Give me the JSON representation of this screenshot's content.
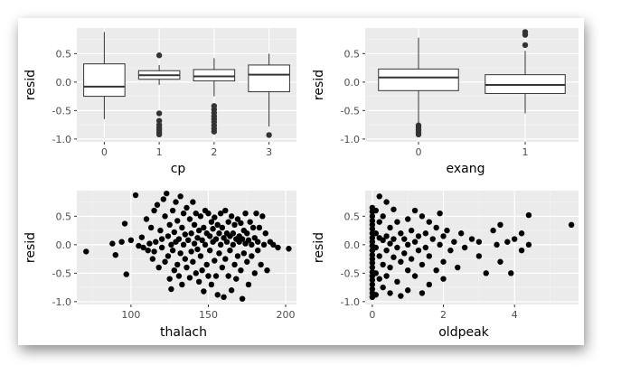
{
  "chart_data": [
    {
      "type": "box",
      "xlabel": "cp",
      "ylabel": "resid",
      "categories": [
        "0",
        "1",
        "2",
        "3"
      ],
      "ylim": [
        -1.05,
        0.95
      ],
      "yticks": [
        -1.0,
        -0.5,
        0.0,
        0.5
      ],
      "ytick_labels": [
        "-1.0",
        "-0.5",
        "0.0",
        "0.5"
      ],
      "grid": true,
      "boxes": [
        {
          "q1": -0.25,
          "median": -0.08,
          "q3": 0.32,
          "whisker_low": -0.65,
          "whisker_high": 0.88,
          "outliers": []
        },
        {
          "q1": 0.05,
          "median": 0.12,
          "q3": 0.2,
          "whisker_low": -0.05,
          "whisker_high": 0.3,
          "outliers": [
            0.47,
            -0.55,
            -0.68,
            -0.75,
            -0.8,
            -0.84,
            -0.88,
            -0.92
          ]
        },
        {
          "q1": 0.02,
          "median": 0.1,
          "q3": 0.22,
          "whisker_low": -0.25,
          "whisker_high": 0.42,
          "outliers": [
            -0.42,
            -0.48,
            -0.54,
            -0.6,
            -0.65,
            -0.7,
            -0.76,
            -0.82,
            -0.87
          ]
        },
        {
          "q1": -0.17,
          "median": 0.13,
          "q3": 0.3,
          "whisker_low": -0.78,
          "whisker_high": 0.5,
          "outliers": [
            -0.93
          ]
        }
      ]
    },
    {
      "type": "box",
      "xlabel": "exang",
      "ylabel": "resid",
      "categories": [
        "0",
        "1"
      ],
      "ylim": [
        -1.05,
        0.95
      ],
      "yticks": [
        -1.0,
        -0.5,
        0.0,
        0.5
      ],
      "ytick_labels": [
        "-1.0",
        "-0.5",
        "0.0",
        "0.5"
      ],
      "grid": true,
      "boxes": [
        {
          "q1": -0.15,
          "median": 0.08,
          "q3": 0.23,
          "whisker_low": -0.72,
          "whisker_high": 0.78,
          "outliers": [
            -0.76,
            -0.8,
            -0.84,
            -0.88,
            -0.92
          ]
        },
        {
          "q1": -0.2,
          "median": -0.05,
          "q3": 0.13,
          "whisker_low": -0.55,
          "whisker_high": 0.55,
          "outliers": [
            0.65,
            0.83,
            0.88
          ]
        }
      ]
    },
    {
      "type": "scatter",
      "xlabel": "thalach",
      "ylabel": "resid",
      "xlim": [
        65,
        207
      ],
      "ylim": [
        -1.05,
        0.95
      ],
      "xticks": [
        100,
        150,
        200
      ],
      "xtick_labels": [
        "100",
        "150",
        "200"
      ],
      "yticks": [
        -1.0,
        -0.5,
        0.0,
        0.5
      ],
      "ytick_labels": [
        "-1.0",
        "-0.5",
        "0.0",
        "0.5"
      ],
      "grid": true,
      "points": [
        [
          71,
          -0.12
        ],
        [
          88,
          0.02
        ],
        [
          90,
          -0.18
        ],
        [
          94,
          0.05
        ],
        [
          96,
          0.37
        ],
        [
          97,
          -0.52
        ],
        [
          100,
          0.08
        ],
        [
          103,
          0.87
        ],
        [
          105,
          -0.02
        ],
        [
          107,
          0.13
        ],
        [
          108,
          -0.05
        ],
        [
          110,
          0.45
        ],
        [
          111,
          -0.1
        ],
        [
          112,
          0.02
        ],
        [
          113,
          0.3
        ],
        [
          114,
          -0.25
        ],
        [
          115,
          0.6
        ],
        [
          115,
          -0.12
        ],
        [
          116,
          0.05
        ],
        [
          117,
          0.7
        ],
        [
          118,
          -0.4
        ],
        [
          119,
          0.25
        ],
        [
          120,
          -0.05
        ],
        [
          120,
          0.1
        ],
        [
          121,
          0.8
        ],
        [
          122,
          -0.3
        ],
        [
          122,
          0.5
        ],
        [
          123,
          0.9
        ],
        [
          124,
          -0.2
        ],
        [
          124,
          0.15
        ],
        [
          125,
          -0.6
        ],
        [
          125,
          0.35
        ],
        [
          126,
          0.0
        ],
        [
          126,
          -0.78
        ],
        [
          127,
          0.6
        ],
        [
          127,
          -0.1
        ],
        [
          128,
          0.22
        ],
        [
          128,
          -0.45
        ],
        [
          129,
          0.75
        ],
        [
          129,
          0.05
        ],
        [
          130,
          -0.35
        ],
        [
          130,
          0.42
        ],
        [
          131,
          -0.55
        ],
        [
          131,
          0.1
        ],
        [
          132,
          0.85
        ],
        [
          132,
          -0.15
        ],
        [
          133,
          0.3
        ],
        [
          133,
          -0.7
        ],
        [
          134,
          0.55
        ],
        [
          134,
          0.0
        ],
        [
          135,
          -0.25
        ],
        [
          135,
          0.18
        ],
        [
          136,
          0.65
        ],
        [
          136,
          -0.4
        ],
        [
          137,
          0.08
        ],
        [
          138,
          -0.58
        ],
        [
          138,
          0.45
        ],
        [
          139,
          0.2
        ],
        [
          139,
          -0.12
        ],
        [
          140,
          0.75
        ],
        [
          140,
          -0.3
        ],
        [
          141,
          0.02
        ],
        [
          141,
          0.35
        ],
        [
          142,
          -0.5
        ],
        [
          142,
          0.55
        ],
        [
          143,
          0.12
        ],
        [
          143,
          -0.08
        ],
        [
          144,
          -0.65
        ],
        [
          144,
          0.25
        ],
        [
          145,
          0.5
        ],
        [
          145,
          -0.2
        ],
        [
          146,
          0.08
        ],
        [
          146,
          -0.45
        ],
        [
          147,
          0.3
        ],
        [
          147,
          -0.82
        ],
        [
          148,
          0.6
        ],
        [
          148,
          0.0
        ],
        [
          149,
          -0.35
        ],
        [
          149,
          0.2
        ],
        [
          150,
          0.55
        ],
        [
          150,
          -0.55
        ],
        [
          151,
          0.15
        ],
        [
          151,
          -0.1
        ],
        [
          152,
          0.4
        ],
        [
          152,
          -0.7
        ],
        [
          153,
          0.05
        ],
        [
          153,
          0.28
        ],
        [
          154,
          -0.28
        ],
        [
          154,
          0.48
        ],
        [
          155,
          0.1
        ],
        [
          155,
          -0.55
        ],
        [
          156,
          0.35
        ],
        [
          156,
          -0.88
        ],
        [
          157,
          0.2
        ],
        [
          157,
          -0.15
        ],
        [
          158,
          0.55
        ],
        [
          158,
          0.0
        ],
        [
          159,
          -0.4
        ],
        [
          159,
          0.3
        ],
        [
          160,
          0.12
        ],
        [
          160,
          -0.92
        ],
        [
          161,
          0.6
        ],
        [
          161,
          -0.25
        ],
        [
          162,
          0.2
        ],
        [
          162,
          0.05
        ],
        [
          163,
          -0.55
        ],
        [
          163,
          0.4
        ],
        [
          164,
          0.15
        ],
        [
          164,
          -0.1
        ],
        [
          165,
          0.5
        ],
        [
          165,
          -0.8
        ],
        [
          166,
          0.2
        ],
        [
          166,
          0.0
        ],
        [
          167,
          -0.35
        ],
        [
          167,
          0.35
        ],
        [
          168,
          0.1
        ],
        [
          168,
          -0.6
        ],
        [
          169,
          0.45
        ],
        [
          169,
          -0.2
        ],
        [
          170,
          0.15
        ],
        [
          170,
          0.05
        ],
        [
          171,
          0.38
        ],
        [
          171,
          -0.45
        ],
        [
          172,
          0.1
        ],
        [
          172,
          -0.95
        ],
        [
          173,
          0.25
        ],
        [
          173,
          -0.15
        ],
        [
          174,
          0.55
        ],
        [
          174,
          0.02
        ],
        [
          175,
          -0.3
        ],
        [
          175,
          0.2
        ],
        [
          176,
          0.08
        ],
        [
          176,
          -0.7
        ],
        [
          177,
          0.4
        ],
        [
          178,
          0.0
        ],
        [
          178,
          -0.2
        ],
        [
          179,
          0.3
        ],
        [
          180,
          0.12
        ],
        [
          180,
          -0.5
        ],
        [
          181,
          0.55
        ],
        [
          182,
          0.05
        ],
        [
          182,
          -0.1
        ],
        [
          183,
          0.3
        ],
        [
          184,
          -0.35
        ],
        [
          185,
          0.5
        ],
        [
          186,
          0.0
        ],
        [
          187,
          0.2
        ],
        [
          188,
          -0.45
        ],
        [
          190,
          0.05
        ],
        [
          192,
          0.0
        ],
        [
          195,
          -0.05
        ],
        [
          202,
          -0.07
        ]
      ]
    },
    {
      "type": "scatter",
      "xlabel": "oldpeak",
      "ylabel": "resid",
      "xlim": [
        -0.2,
        5.8
      ],
      "ylim": [
        -1.05,
        0.95
      ],
      "xticks": [
        0,
        2,
        4
      ],
      "xtick_labels": [
        "0",
        "2",
        "4"
      ],
      "yticks": [
        -1.0,
        -0.5,
        0.0,
        0.5
      ],
      "ytick_labels": [
        "-1.0",
        "-0.5",
        "0.0",
        "0.5"
      ],
      "grid": true,
      "points": [
        [
          0,
          0.65
        ],
        [
          0,
          0.58
        ],
        [
          0,
          0.5
        ],
        [
          0,
          0.42
        ],
        [
          0,
          0.35
        ],
        [
          0,
          0.28
        ],
        [
          0,
          0.2
        ],
        [
          0,
          0.12
        ],
        [
          0,
          0.05
        ],
        [
          0,
          -0.02
        ],
        [
          0,
          -0.1
        ],
        [
          0,
          -0.18
        ],
        [
          0,
          -0.25
        ],
        [
          0,
          -0.32
        ],
        [
          0,
          -0.4
        ],
        [
          0,
          -0.48
        ],
        [
          0,
          -0.55
        ],
        [
          0,
          -0.62
        ],
        [
          0,
          -0.7
        ],
        [
          0,
          -0.78
        ],
        [
          0,
          -0.85
        ],
        [
          0,
          -0.92
        ],
        [
          0.1,
          0.6
        ],
        [
          0.1,
          0.2
        ],
        [
          0.1,
          -0.05
        ],
        [
          0.1,
          -0.5
        ],
        [
          0.1,
          -0.88
        ],
        [
          0.2,
          0.85
        ],
        [
          0.2,
          0.4
        ],
        [
          0.2,
          0.12
        ],
        [
          0.2,
          -0.2
        ],
        [
          0.2,
          -0.6
        ],
        [
          0.3,
          0.5
        ],
        [
          0.3,
          0.08
        ],
        [
          0.3,
          -0.35
        ],
        [
          0.3,
          -0.75
        ],
        [
          0.4,
          0.75
        ],
        [
          0.4,
          0.15
        ],
        [
          0.4,
          -0.1
        ],
        [
          0.4,
          -0.55
        ],
        [
          0.5,
          0.3
        ],
        [
          0.5,
          0.02
        ],
        [
          0.5,
          -0.4
        ],
        [
          0.5,
          -0.85
        ],
        [
          0.6,
          0.62
        ],
        [
          0.6,
          0.1
        ],
        [
          0.6,
          -0.22
        ],
        [
          0.7,
          0.4
        ],
        [
          0.7,
          -0.05
        ],
        [
          0.7,
          -0.65
        ],
        [
          0.8,
          0.2
        ],
        [
          0.8,
          -0.3
        ],
        [
          0.8,
          -0.9
        ],
        [
          0.9,
          0.1
        ],
        [
          0.9,
          -0.15
        ],
        [
          1.0,
          0.45
        ],
        [
          1.0,
          0.0
        ],
        [
          1.0,
          -0.45
        ],
        [
          1.0,
          -0.8
        ],
        [
          1.1,
          0.25
        ],
        [
          1.1,
          -0.25
        ],
        [
          1.2,
          0.6
        ],
        [
          1.2,
          0.05
        ],
        [
          1.2,
          -0.55
        ],
        [
          1.3,
          0.15
        ],
        [
          1.3,
          -0.1
        ],
        [
          1.4,
          0.5
        ],
        [
          1.4,
          -0.35
        ],
        [
          1.4,
          -0.85
        ],
        [
          1.5,
          0.2
        ],
        [
          1.5,
          -0.05
        ],
        [
          1.6,
          0.4
        ],
        [
          1.6,
          -0.2
        ],
        [
          1.6,
          -0.7
        ],
        [
          1.7,
          0.1
        ],
        [
          1.8,
          0.3
        ],
        [
          1.8,
          -0.45
        ],
        [
          1.9,
          0.55
        ],
        [
          1.9,
          0.0
        ],
        [
          2.0,
          0.15
        ],
        [
          2.0,
          -0.3
        ],
        [
          2.0,
          -0.6
        ],
        [
          2.1,
          0.25
        ],
        [
          2.2,
          -0.1
        ],
        [
          2.3,
          0.05
        ],
        [
          2.4,
          -0.4
        ],
        [
          2.5,
          0.2
        ],
        [
          2.6,
          -0.05
        ],
        [
          2.8,
          0.1
        ],
        [
          3.0,
          -0.2
        ],
        [
          3.0,
          0.05
        ],
        [
          3.2,
          -0.5
        ],
        [
          3.4,
          0.25
        ],
        [
          3.5,
          0.0
        ],
        [
          3.6,
          -0.3
        ],
        [
          3.6,
          0.35
        ],
        [
          3.8,
          0.05
        ],
        [
          3.9,
          -0.5
        ],
        [
          4.0,
          0.1
        ],
        [
          4.2,
          0.2
        ],
        [
          4.2,
          -0.1
        ],
        [
          4.4,
          0.0
        ],
        [
          4.4,
          0.52
        ],
        [
          5.6,
          0.35
        ]
      ]
    }
  ]
}
